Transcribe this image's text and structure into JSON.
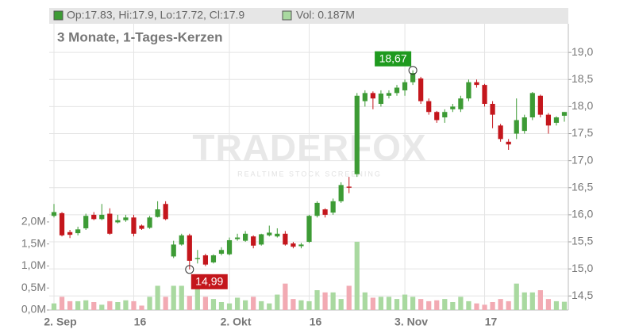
{
  "chart_data": {
    "type": "candlestick",
    "title": "3 Monate, 1-Tages-Kerzen",
    "header_info": "Op:17.83, Hi:17.9, Lo:17.72, Cl:17.9",
    "volume_info": "Vol: 0.187M",
    "watermark": "TRADERFOX",
    "watermark_subtitle": "REALTIME STOCK SCREENING",
    "categories": [
      "2. Sep",
      null,
      null,
      null,
      null,
      null,
      null,
      null,
      null,
      null,
      "16",
      null,
      null,
      null,
      null,
      null,
      null,
      null,
      null,
      null,
      null,
      null,
      "2. Okt",
      null,
      null,
      null,
      null,
      null,
      null,
      null,
      null,
      null,
      "16",
      null,
      null,
      null,
      null,
      null,
      null,
      null,
      null,
      null,
      null,
      null,
      "3. Nov",
      null,
      null,
      null,
      null,
      null,
      null,
      null,
      null,
      null,
      "17",
      null,
      null,
      null,
      null,
      null,
      null,
      null,
      null,
      null,
      null
    ],
    "open": [
      15.98,
      16.03,
      15.68,
      15.66,
      15.75,
      16.0,
      15.92,
      16.02,
      15.86,
      15.9,
      15.95,
      15.8,
      15.76,
      15.96,
      16.2,
      15.23,
      15.45,
      15.62,
      15.18,
      15.25,
      15.12,
      15.28,
      15.27,
      15.55,
      15.52,
      15.6,
      15.45,
      15.62,
      15.6,
      15.65,
      15.47,
      15.42,
      15.5,
      15.98,
      16.1,
      16.04,
      16.25,
      16.52,
      16.75,
      18.1,
      18.25,
      18.05,
      18.2,
      18.25,
      18.3,
      18.45,
      18.52,
      18.1,
      17.9,
      17.8,
      17.95,
      17.95,
      18.15,
      18.45,
      18.4,
      18.05,
      17.65,
      17.35,
      17.5,
      17.55,
      17.8,
      18.2,
      17.85,
      17.7,
      17.83
    ],
    "high": [
      16.2,
      16.05,
      15.72,
      15.78,
      16.02,
      16.05,
      16.2,
      16.12,
      16.0,
      16.0,
      16.0,
      15.82,
      15.98,
      16.25,
      16.25,
      15.52,
      15.65,
      15.65,
      15.35,
      15.28,
      15.27,
      15.4,
      15.58,
      15.65,
      15.7,
      15.62,
      15.65,
      15.8,
      15.75,
      15.7,
      15.5,
      15.48,
      16.0,
      16.25,
      16.12,
      16.3,
      16.6,
      16.7,
      18.25,
      18.3,
      18.28,
      18.3,
      18.3,
      18.4,
      18.5,
      18.67,
      18.55,
      18.15,
      17.92,
      17.95,
      18.05,
      18.2,
      18.5,
      18.5,
      18.42,
      18.1,
      17.68,
      17.4,
      18.15,
      17.85,
      18.27,
      18.22,
      17.88,
      17.82,
      17.9
    ],
    "low": [
      15.95,
      15.6,
      15.57,
      15.62,
      15.72,
      15.9,
      15.9,
      15.63,
      15.84,
      15.87,
      15.6,
      15.72,
      15.74,
      15.95,
      15.9,
      15.2,
      15.43,
      14.99,
      15.1,
      15.05,
      15.1,
      15.25,
      15.25,
      15.52,
      15.5,
      15.38,
      15.43,
      15.6,
      15.58,
      15.43,
      15.38,
      15.38,
      15.48,
      15.95,
      15.95,
      16.0,
      16.22,
      16.4,
      16.7,
      18.0,
      17.95,
      18.0,
      18.15,
      18.2,
      18.2,
      18.4,
      18.05,
      17.85,
      17.7,
      17.7,
      17.9,
      17.9,
      18.1,
      18.35,
      18.0,
      17.6,
      17.35,
      17.2,
      17.4,
      17.5,
      17.75,
      17.8,
      17.5,
      17.65,
      17.72
    ],
    "close": [
      16.05,
      15.62,
      15.63,
      15.73,
      15.98,
      15.92,
      16.0,
      15.65,
      15.9,
      15.95,
      15.65,
      15.74,
      15.95,
      16.1,
      15.92,
      15.45,
      15.62,
      15.15,
      15.2,
      15.08,
      15.25,
      15.35,
      15.53,
      15.58,
      15.65,
      15.43,
      15.64,
      15.67,
      15.65,
      15.45,
      15.41,
      15.45,
      15.98,
      16.22,
      16.0,
      16.25,
      16.55,
      16.5,
      18.2,
      18.25,
      18.15,
      18.24,
      18.25,
      18.35,
      18.45,
      18.62,
      18.1,
      17.9,
      17.75,
      17.9,
      18.0,
      18.15,
      18.45,
      18.4,
      18.05,
      17.85,
      17.4,
      17.3,
      17.75,
      17.8,
      18.25,
      17.85,
      17.65,
      17.8,
      17.9
    ],
    "volume": [
      0.15,
      0.3,
      0.2,
      0.2,
      0.22,
      0.18,
      0.12,
      0.2,
      0.18,
      0.22,
      0.2,
      0.1,
      0.3,
      0.55,
      0.3,
      0.55,
      0.55,
      0.32,
      0.55,
      0.3,
      0.25,
      0.18,
      0.15,
      0.28,
      0.22,
      0.3,
      0.2,
      0.15,
      0.35,
      0.6,
      0.25,
      0.22,
      0.2,
      0.45,
      0.4,
      0.4,
      0.25,
      0.55,
      1.55,
      0.4,
      0.28,
      0.3,
      0.3,
      0.25,
      0.35,
      0.3,
      0.25,
      0.2,
      0.22,
      0.25,
      0.18,
      0.3,
      0.2,
      0.15,
      0.12,
      0.18,
      0.25,
      0.2,
      0.6,
      0.4,
      0.4,
      0.45,
      0.25,
      0.2,
      0.187
    ],
    "up_color": "#3d9b35",
    "down_color": "#c4161c",
    "volume_up_color": "#a9d9a0",
    "volume_down_color": "#f2aab3",
    "ylim": [
      14.24,
      19.53
    ],
    "yticks": [
      {
        "value": 14.5,
        "label": "14,5"
      },
      {
        "value": 15,
        "label": "15,0"
      },
      {
        "value": 15.5,
        "label": "15,5"
      },
      {
        "value": 16,
        "label": "16,0"
      },
      {
        "value": 16.5,
        "label": "16,5"
      },
      {
        "value": 17,
        "label": "17,0"
      },
      {
        "value": 17.5,
        "label": "17,5"
      },
      {
        "value": 18,
        "label": "18,0"
      },
      {
        "value": 18.5,
        "label": "18,5"
      },
      {
        "value": 19,
        "label": "19,0"
      }
    ],
    "y2lim": [
      0,
      6.5
    ],
    "y2ticks": [
      {
        "value": 0,
        "label": "0,0M"
      },
      {
        "value": 0.5,
        "label": "0,5M"
      },
      {
        "value": 1,
        "label": "1,0M"
      },
      {
        "value": 1.5,
        "label": "1,5M"
      },
      {
        "value": 2,
        "label": "2,0M"
      }
    ],
    "annotations": [
      {
        "label": "18,67",
        "value": 18.67,
        "color": "#1f9a1f"
      },
      {
        "label": "14,99",
        "value": 14.99,
        "color": "#c4161c"
      }
    ],
    "grid": true
  }
}
